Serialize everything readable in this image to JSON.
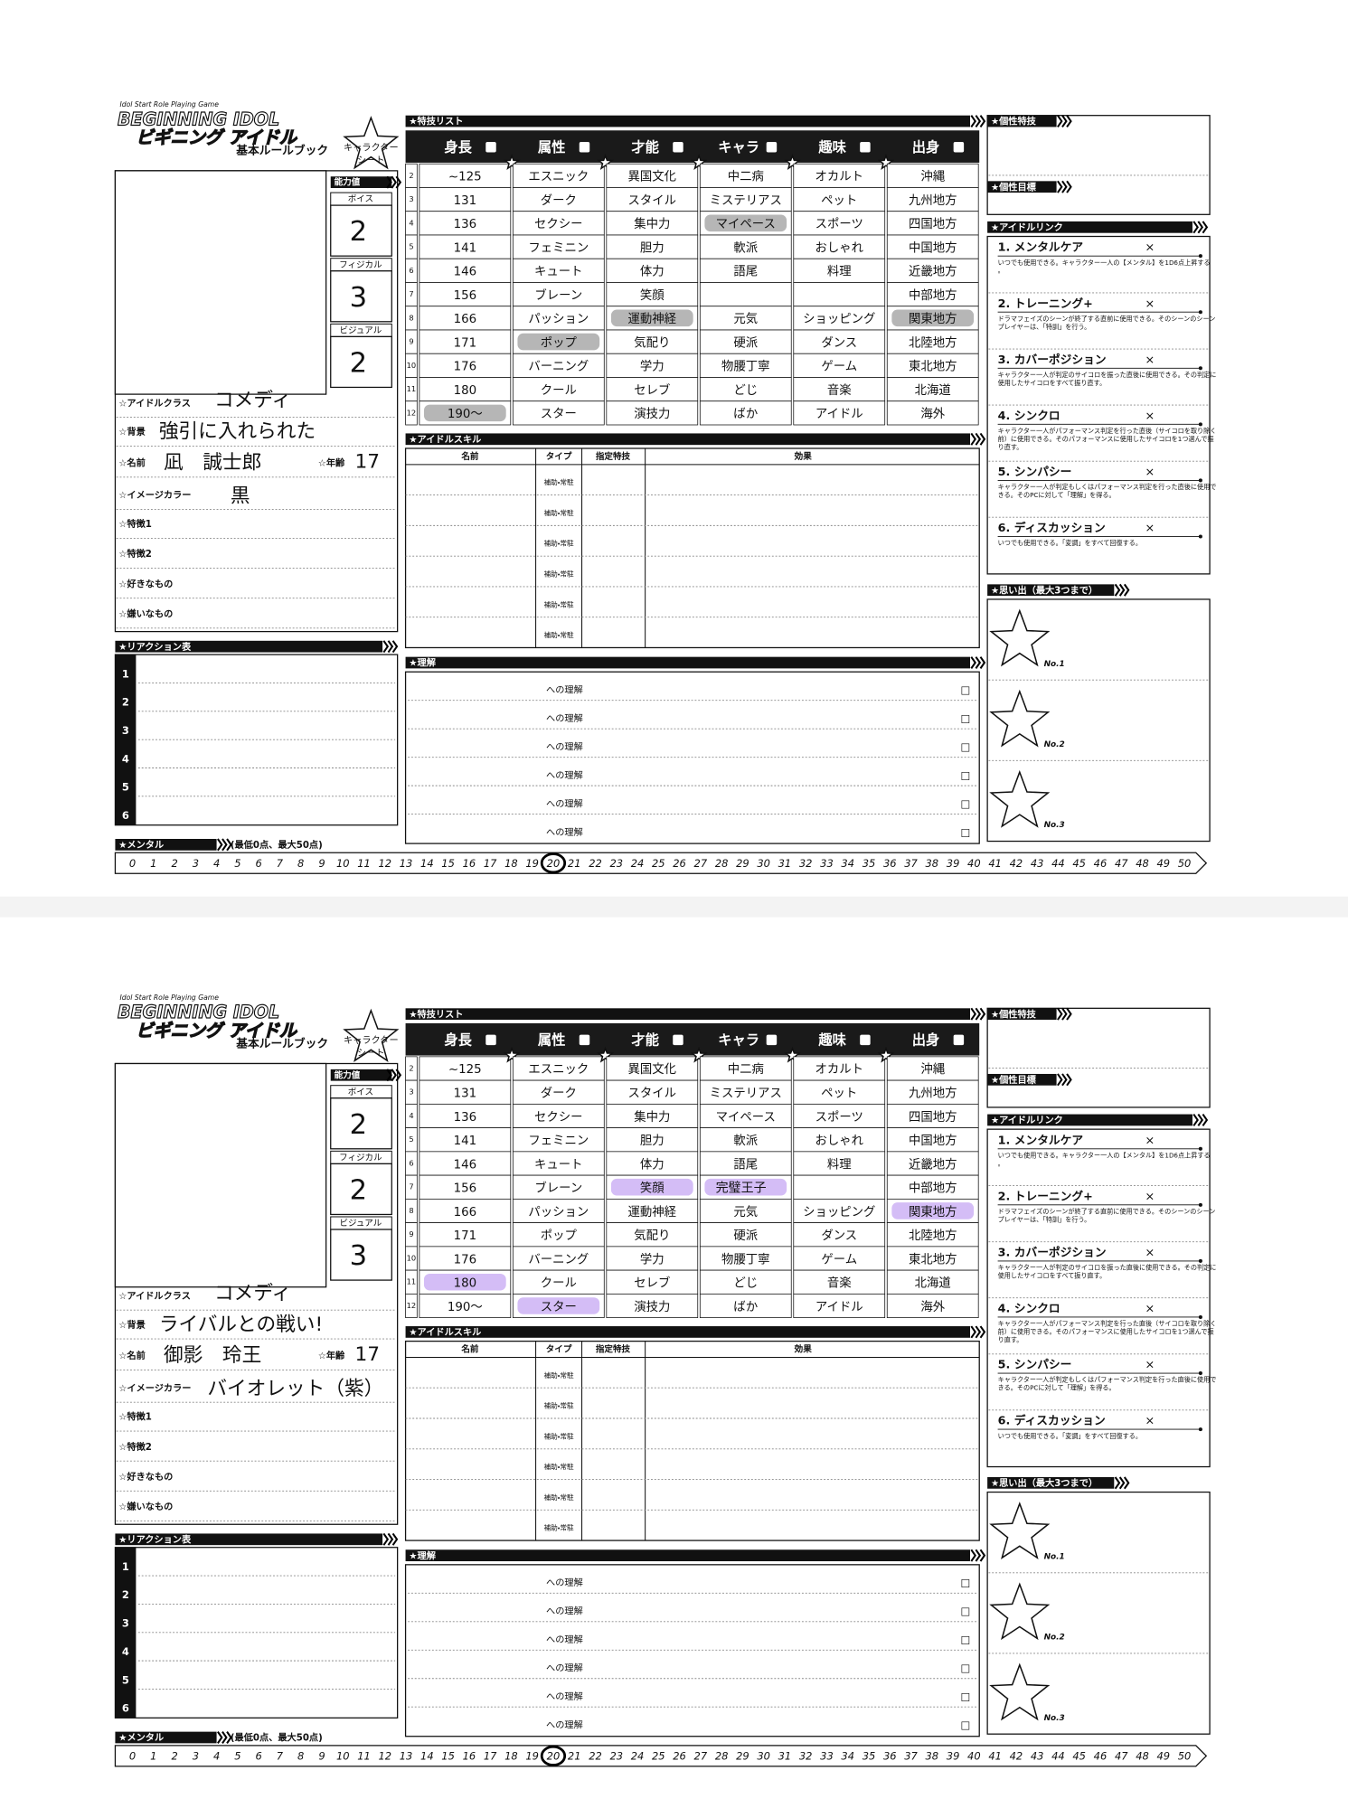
{
  "template": {
    "logo": {
      "tagline": "Idol Start Role Playing Game",
      "title_en": "BEGINNING IDOL",
      "title_ja": "ビギニング アイドル",
      "subtitle": "基本ルールブック",
      "sheet_label_1": "キャラクター",
      "sheet_label_2": "シート"
    },
    "ability_title": "能力値",
    "abilities": [
      "ボイス",
      "フィジカル",
      "ビジュアル"
    ],
    "fields": [
      "☆アイドルクラス",
      "☆背景",
      "☆名前",
      "☆イメージカラー",
      "☆特徴1",
      "☆特徴2",
      "☆好きなもの",
      "☆嫌いなもの"
    ],
    "age_label": "☆年齢",
    "reaction": {
      "title": "★リアクション表",
      "rows": [
        1,
        2,
        3,
        4,
        5,
        6
      ]
    },
    "mental": {
      "title": "★メンタル",
      "note": "(最低0点、最大50点)",
      "scale": [
        0,
        1,
        2,
        3,
        4,
        5,
        6,
        7,
        8,
        9,
        10,
        11,
        12,
        13,
        14,
        15,
        16,
        17,
        18,
        19,
        20,
        21,
        22,
        23,
        24,
        25,
        26,
        27,
        28,
        29,
        30,
        31,
        32,
        33,
        34,
        35,
        36,
        37,
        38,
        39,
        40,
        41,
        42,
        43,
        44,
        45,
        46,
        47,
        48,
        49,
        50
      ]
    },
    "skill_list": {
      "title": "★特技リスト",
      "row_numbers": [
        2,
        3,
        4,
        5,
        6,
        7,
        8,
        9,
        10,
        11,
        12
      ],
      "columns": [
        {
          "name": "身長",
          "items": [
            "~125",
            "131",
            "136",
            "141",
            "146",
            "156",
            "166",
            "171",
            "176",
            "180",
            "190〜"
          ]
        },
        {
          "name": "属性",
          "items": [
            "エスニック",
            "ダーク",
            "セクシー",
            "フェミニン",
            "キュート",
            "ブレーン",
            "パッション",
            "ポップ",
            "バーニング",
            "クール",
            "スター"
          ]
        },
        {
          "name": "才能",
          "items": [
            "異国文化",
            "スタイル",
            "集中力",
            "胆力",
            "体力",
            "笑顔",
            "運動神経",
            "気配り",
            "学力",
            "セレブ",
            "演技力"
          ]
        },
        {
          "name": "キャラ",
          "items": [
            "中二病",
            "ミステリアス",
            "マイペース",
            "軟派",
            "語尾",
            null,
            "元気",
            "硬派",
            "物腰丁寧",
            "どじ",
            "ばか"
          ]
        },
        {
          "name": "趣味",
          "items": [
            "オカルト",
            "ペット",
            "スポーツ",
            "おしゃれ",
            "料理",
            null,
            "ショッピング",
            "ダンス",
            "ゲーム",
            "音楽",
            "アイドル"
          ]
        },
        {
          "name": "出身",
          "items": [
            "沖縄",
            "九州地方",
            "四国地方",
            "中国地方",
            "近畿地方",
            "中部地方",
            "関東地方",
            "北陸地方",
            "東北地方",
            "北海道",
            "海外"
          ]
        }
      ]
    },
    "idol_skill": {
      "title": "★アイドルスキル",
      "headers": [
        "名前",
        "タイプ",
        "指定特技",
        "効果"
      ],
      "type_cells": [
        "補助・常駐",
        "補助・常駐",
        "補助・常駐",
        "補助・常駐",
        "補助・常駐",
        "補助・常駐"
      ]
    },
    "understanding": {
      "title": "★理解",
      "rows": [
        "への理解",
        "への理解",
        "への理解",
        "への理解",
        "への理解",
        "への理解"
      ],
      "checkbox": "□"
    },
    "personal_skill": "★個性特技",
    "personal_goal": "★個性目標",
    "idol_link": {
      "title": "★アイドルリンク",
      "mark": "×",
      "items": [
        {
          "name": "1. メンタルケア",
          "desc": "いつでも使用できる。キャラクター一人の【メンタル】を1D6点上昇する。"
        },
        {
          "name": "2. トレーニング+",
          "desc": "ドラマフェイズのシーンが終了する直前に使用できる。そのシーンのシーンプレイヤーは、「特訓」を行う。"
        },
        {
          "name": "3. カバーポジション",
          "desc": "キャラクター一人が判定のサイコロを振った直後に使用できる。その判定に使用したサイコロをすべて振り直す。"
        },
        {
          "name": "4. シンクロ",
          "desc": "キャラクター一人がパフォーマンス判定を行った直後（サイコロを取り除く前）に使用できる。そのパフォーマンスに使用したサイコロを1つ選んで振り直す。"
        },
        {
          "name": "5. シンパシー",
          "desc": "キャラクター一人が判定もしくはパフォーマンス判定を行った直後に使用できる。そのPCに対して「理解」を得る。"
        },
        {
          "name": "6. ディスカッション",
          "desc": "いつでも使用できる。「変調」をすべて回復する。"
        }
      ]
    },
    "memories": {
      "title": "★思い出（最大3つまで）",
      "slots": [
        "No.1",
        "No.2",
        "No.3"
      ]
    }
  },
  "sheets": [
    {
      "abilities": [
        2,
        3,
        2
      ],
      "idol_class": "コメディ",
      "background": "強引に入れられた",
      "name": "凪　誠士郎",
      "age": 17,
      "image_color": "黒",
      "selected": [
        "190〜",
        "ポップ",
        "運動神経",
        "マイペース",
        "関東地方"
      ],
      "highlight_color": "#a9a9a9",
      "mental_mark": 20
    },
    {
      "abilities": [
        2,
        2,
        3
      ],
      "idol_class": "コメディ",
      "background": "ライバルとの戦い!",
      "name": "御影　玲王",
      "age": 17,
      "image_color": "バイオレット（紫）",
      "selected": [
        "180",
        "スター",
        "笑顔",
        "関東地方"
      ],
      "written": {
        "column": "キャラ",
        "row": 7,
        "text": "完璧王子"
      },
      "highlight_color": "#cdb2f5",
      "mental_mark": 20
    }
  ]
}
